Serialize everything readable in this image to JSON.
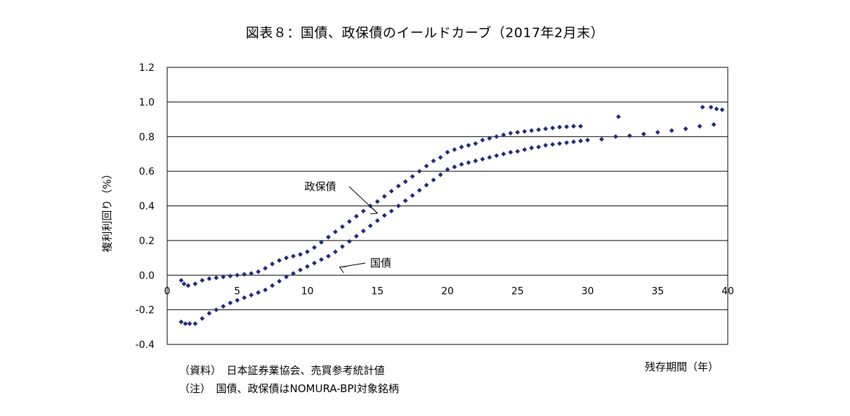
{
  "chart_data": {
    "type": "scatter",
    "title": "図表８：国債、政保債のイールドカーブ（2017年2月末）",
    "xlabel": "残存期間（年）",
    "ylabel": "複利利回り（%）",
    "xlim": [
      0,
      40
    ],
    "ylim": [
      -0.4,
      1.2
    ],
    "x_ticks": [
      "0",
      "5",
      "10",
      "15",
      "20",
      "25",
      "30",
      "35",
      "40"
    ],
    "y_ticks": [
      "1.2",
      "1.0",
      "0.8",
      "0.6",
      "0.4",
      "0.2",
      "0.0",
      "-0.2",
      "-0.4"
    ],
    "grid": "horizontal",
    "marker_color": "#1f2a7a",
    "annotations": [
      {
        "text": "政保債",
        "series": "政保債",
        "points_to": [
          14.5,
          0.455
        ]
      },
      {
        "text": "国債",
        "series": "国債",
        "points_to": [
          11.5,
          0.135
        ]
      }
    ],
    "series": [
      {
        "name": "政保債",
        "points": [
          [
            1.0,
            -0.03
          ],
          [
            1.2,
            -0.05
          ],
          [
            1.5,
            -0.06
          ],
          [
            2.0,
            -0.05
          ],
          [
            2.5,
            -0.03
          ],
          [
            3.0,
            -0.02
          ],
          [
            3.5,
            -0.015
          ],
          [
            4.0,
            -0.01
          ],
          [
            4.5,
            -0.005
          ],
          [
            5.0,
            0.0
          ],
          [
            5.5,
            0.005
          ],
          [
            6.0,
            0.01
          ],
          [
            6.5,
            0.02
          ],
          [
            7.0,
            0.04
          ],
          [
            7.5,
            0.065
          ],
          [
            8.0,
            0.085
          ],
          [
            8.5,
            0.1
          ],
          [
            9.0,
            0.11
          ],
          [
            9.5,
            0.12
          ],
          [
            10.0,
            0.135
          ],
          [
            10.5,
            0.16
          ],
          [
            11.0,
            0.19
          ],
          [
            11.5,
            0.22
          ],
          [
            12.0,
            0.25
          ],
          [
            12.5,
            0.28
          ],
          [
            13.0,
            0.31
          ],
          [
            13.5,
            0.34
          ],
          [
            14.0,
            0.37
          ],
          [
            14.5,
            0.4
          ],
          [
            15.0,
            0.425
          ],
          [
            15.5,
            0.455
          ],
          [
            16.0,
            0.485
          ],
          [
            16.5,
            0.515
          ],
          [
            17.0,
            0.54
          ],
          [
            17.5,
            0.57
          ],
          [
            18.0,
            0.6
          ],
          [
            18.5,
            0.63
          ],
          [
            19.0,
            0.66
          ],
          [
            19.5,
            0.68
          ],
          [
            20.0,
            0.71
          ],
          [
            20.5,
            0.725
          ],
          [
            21.0,
            0.74
          ],
          [
            21.5,
            0.75
          ],
          [
            22.0,
            0.76
          ],
          [
            22.5,
            0.78
          ],
          [
            23.0,
            0.79
          ],
          [
            23.5,
            0.8
          ],
          [
            24.0,
            0.81
          ],
          [
            24.5,
            0.82
          ],
          [
            25.0,
            0.825
          ],
          [
            25.5,
            0.83
          ],
          [
            26.0,
            0.835
          ],
          [
            26.5,
            0.84
          ],
          [
            27.0,
            0.845
          ],
          [
            27.5,
            0.85
          ],
          [
            28.0,
            0.855
          ],
          [
            28.5,
            0.857
          ],
          [
            29.0,
            0.86
          ],
          [
            29.5,
            0.86
          ],
          [
            32.2,
            0.915
          ],
          [
            38.2,
            0.97
          ],
          [
            38.8,
            0.97
          ],
          [
            39.2,
            0.96
          ],
          [
            39.6,
            0.955
          ]
        ]
      },
      {
        "name": "国債",
        "points": [
          [
            1.0,
            -0.27
          ],
          [
            1.3,
            -0.28
          ],
          [
            1.6,
            -0.28
          ],
          [
            2.0,
            -0.28
          ],
          [
            2.5,
            -0.25
          ],
          [
            3.0,
            -0.22
          ],
          [
            3.5,
            -0.2
          ],
          [
            4.0,
            -0.18
          ],
          [
            4.5,
            -0.16
          ],
          [
            5.0,
            -0.145
          ],
          [
            5.5,
            -0.13
          ],
          [
            6.0,
            -0.115
          ],
          [
            6.5,
            -0.1
          ],
          [
            7.0,
            -0.085
          ],
          [
            7.5,
            -0.06
          ],
          [
            8.0,
            -0.035
          ],
          [
            8.5,
            -0.01
          ],
          [
            9.0,
            0.01
          ],
          [
            9.5,
            0.03
          ],
          [
            10.0,
            0.05
          ],
          [
            10.5,
            0.07
          ],
          [
            11.0,
            0.09
          ],
          [
            11.5,
            0.11
          ],
          [
            12.0,
            0.135
          ],
          [
            12.5,
            0.165
          ],
          [
            13.0,
            0.195
          ],
          [
            13.5,
            0.225
          ],
          [
            14.0,
            0.255
          ],
          [
            14.5,
            0.285
          ],
          [
            15.0,
            0.315
          ],
          [
            15.5,
            0.345
          ],
          [
            16.0,
            0.37
          ],
          [
            16.5,
            0.4
          ],
          [
            17.0,
            0.43
          ],
          [
            17.5,
            0.46
          ],
          [
            18.0,
            0.49
          ],
          [
            18.5,
            0.52
          ],
          [
            19.0,
            0.55
          ],
          [
            19.5,
            0.58
          ],
          [
            20.0,
            0.61
          ],
          [
            20.5,
            0.625
          ],
          [
            21.0,
            0.64
          ],
          [
            21.5,
            0.65
          ],
          [
            22.0,
            0.66
          ],
          [
            22.5,
            0.67
          ],
          [
            23.0,
            0.68
          ],
          [
            23.5,
            0.69
          ],
          [
            24.0,
            0.7
          ],
          [
            24.5,
            0.71
          ],
          [
            25.0,
            0.715
          ],
          [
            25.5,
            0.725
          ],
          [
            26.0,
            0.735
          ],
          [
            26.5,
            0.74
          ],
          [
            27.0,
            0.75
          ],
          [
            27.5,
            0.755
          ],
          [
            28.0,
            0.76
          ],
          [
            28.5,
            0.765
          ],
          [
            29.0,
            0.77
          ],
          [
            29.5,
            0.775
          ],
          [
            30.0,
            0.78
          ],
          [
            31.0,
            0.785
          ],
          [
            32.0,
            0.8
          ],
          [
            33.0,
            0.805
          ],
          [
            34.0,
            0.815
          ],
          [
            35.0,
            0.825
          ],
          [
            36.0,
            0.835
          ],
          [
            37.0,
            0.845
          ],
          [
            38.0,
            0.86
          ],
          [
            39.0,
            0.87
          ]
        ]
      }
    ]
  },
  "footnotes": {
    "source": "（資料）　日本証券業協会、売買参考統計値",
    "note": "（注）　国債、政保債はNOMURA-BPI対象銘柄"
  }
}
